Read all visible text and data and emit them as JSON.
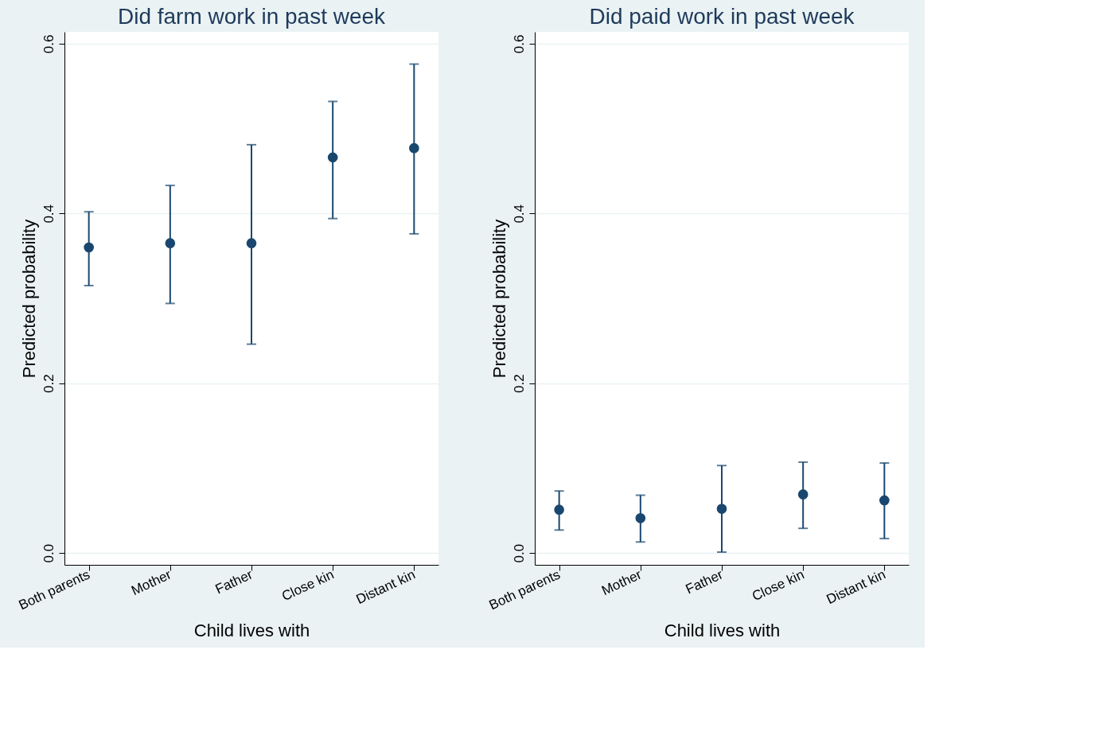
{
  "chart_data": [
    {
      "type": "scatter",
      "title": "Did farm work in past week",
      "xlabel": "Child lives with",
      "ylabel": "Predicted probability",
      "categories": [
        "Both parents",
        "Mother",
        "Father",
        "Close kin",
        "Distant kin"
      ],
      "values": [
        0.36,
        0.365,
        0.365,
        0.466,
        0.477
      ],
      "errors": [
        [
          0.315,
          0.402
        ],
        [
          0.294,
          0.433
        ],
        [
          0.246,
          0.481
        ],
        [
          0.394,
          0.532
        ],
        [
          0.376,
          0.576
        ]
      ],
      "color": "#1a476f",
      "marker": "circle",
      "ylim": [
        -0.014,
        0.614
      ],
      "yticks": [
        {
          "value": 0,
          "label": "0.0"
        },
        {
          "value": 0.2,
          "label": "0.2"
        },
        {
          "value": 0.4,
          "label": "0.4"
        },
        {
          "value": 0.6,
          "label": "0.6"
        }
      ],
      "grid": "y"
    },
    {
      "type": "scatter",
      "title": "Did paid work in past week",
      "xlabel": "Child lives with",
      "ylabel": "Predicted probability",
      "categories": [
        "Both parents",
        "Mother",
        "Father",
        "Close kin",
        "Distant kin"
      ],
      "values": [
        0.051,
        0.041,
        0.052,
        0.069,
        0.062
      ],
      "errors": [
        [
          0.027,
          0.073
        ],
        [
          0.013,
          0.068
        ],
        [
          0.001,
          0.103
        ],
        [
          0.029,
          0.107
        ],
        [
          0.017,
          0.106
        ]
      ],
      "color": "#1a476f",
      "marker": "circle",
      "ylim": [
        -0.014,
        0.614
      ],
      "yticks": [
        {
          "value": 0,
          "label": "0.0"
        },
        {
          "value": 0.2,
          "label": "0.2"
        },
        {
          "value": 0.4,
          "label": "0.4"
        },
        {
          "value": 0.6,
          "label": "0.6"
        }
      ],
      "grid": "y"
    }
  ]
}
